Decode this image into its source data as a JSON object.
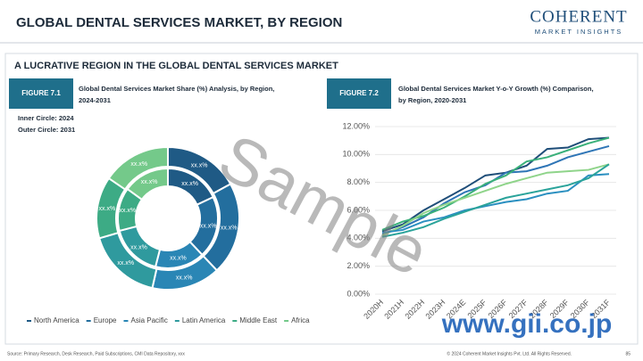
{
  "header": {
    "title": "GLOBAL DENTAL SERVICES MARKET, BY REGION",
    "logo_main": "COHERENT",
    "logo_sub": "MARKET INSIGHTS"
  },
  "section_title": "A LUCRATIVE REGION IN THE GLOBAL DENTAL SERVICES MARKET",
  "chart_data": [
    {
      "type": "donut",
      "figure_label": "FIGURE 7.1",
      "title": [
        "Global Dental Services Market Share (%) Analysis, by Region,",
        "2024-2031"
      ],
      "notes": [
        "Inner Circle: 2024",
        "Outer Circle: 2031"
      ],
      "categories": [
        "North America",
        "Europe",
        "Asia Pacific",
        "Latin America",
        "Middle East",
        "Africa"
      ],
      "colors": [
        "#1f5a85",
        "#236e9e",
        "#2a86b5",
        "#2f9a9e",
        "#3dab85",
        "#74c98a"
      ],
      "series": [
        {
          "values": [
            18,
            20,
            16,
            17,
            14,
            15
          ],
          "value_labels": [
            "xx.x%",
            "xx.x%",
            "xx.x%",
            "xx.x%",
            "xx.x%",
            "xx.x%"
          ]
        },
        {
          "values": [
            17,
            21,
            15.5,
            17,
            14,
            15.5
          ],
          "value_labels": [
            "xx.x%",
            "xx.x%",
            "xx.x%",
            "xx.x%",
            "xx.x%",
            "xx.x%"
          ]
        }
      ]
    },
    {
      "type": "line",
      "figure_label": "FIGURE 7.2",
      "title": [
        "Global Dental Services Market Y-o-Y Growth (%) Comparison,",
        "by Region, 2020-2031"
      ],
      "categories": [
        "2020H",
        "2021H",
        "2022H",
        "2023H",
        "2024E",
        "2025F",
        "2026F",
        "2027F",
        "2028F",
        "2029F",
        "2030F",
        "2031F"
      ],
      "ylim": [
        0,
        12
      ],
      "yticks": [
        {
          "value": 0,
          "label": "0.00%"
        },
        {
          "value": 2,
          "label": "2.00%"
        },
        {
          "value": 4,
          "label": "4.00%"
        },
        {
          "value": 6,
          "label": "6.00%"
        },
        {
          "value": 8,
          "label": "8.00%"
        },
        {
          "value": 10,
          "label": "10.00%"
        },
        {
          "value": 12,
          "label": "12.00%"
        }
      ],
      "grid": true,
      "series": [
        {
          "color": "#1f4e79",
          "values": [
            4.5,
            5,
            6,
            6.8,
            7.6,
            8.5,
            8.7,
            9.2,
            10.4,
            10.5,
            11.1,
            11.2
          ]
        },
        {
          "color": "#2e75b6",
          "values": [
            4.3,
            4.8,
            5.5,
            6.5,
            7.3,
            7.8,
            8.7,
            8.8,
            9.2,
            9.8,
            10.2,
            10.6
          ]
        },
        {
          "color": "#3ab07a",
          "values": [
            4.6,
            5.2,
            5.6,
            6.2,
            7,
            7.9,
            8.5,
            9.5,
            9.8,
            10.3,
            10.8,
            11.2
          ]
        },
        {
          "color": "#8fd48a",
          "values": [
            4.2,
            4.9,
            5.8,
            6.4,
            6.9,
            7.4,
            7.9,
            8.3,
            8.7,
            8.8,
            8.9,
            9.3
          ]
        },
        {
          "color": "#2a8fc0",
          "values": [
            4.4,
            4.6,
            5.2,
            5.5,
            6,
            6.3,
            6.6,
            6.8,
            7.2,
            7.4,
            8.5,
            8.6
          ]
        },
        {
          "color": "#2aa39a",
          "values": [
            4.1,
            4.4,
            4.8,
            5.4,
            5.9,
            6.4,
            6.9,
            7.2,
            7.5,
            7.8,
            8.3,
            9.3
          ]
        }
      ]
    }
  ],
  "footer": {
    "source": "Source: Primary Research, Desk Research, Paid Subscriptions, CMI Data Repository, xxx",
    "copyright": "© 2024 Coherent Market Insights Pvt. Ltd. All Rights Reserved.",
    "page": 85
  },
  "watermarks": [
    "Sample",
    "www.gii.co.jp"
  ]
}
